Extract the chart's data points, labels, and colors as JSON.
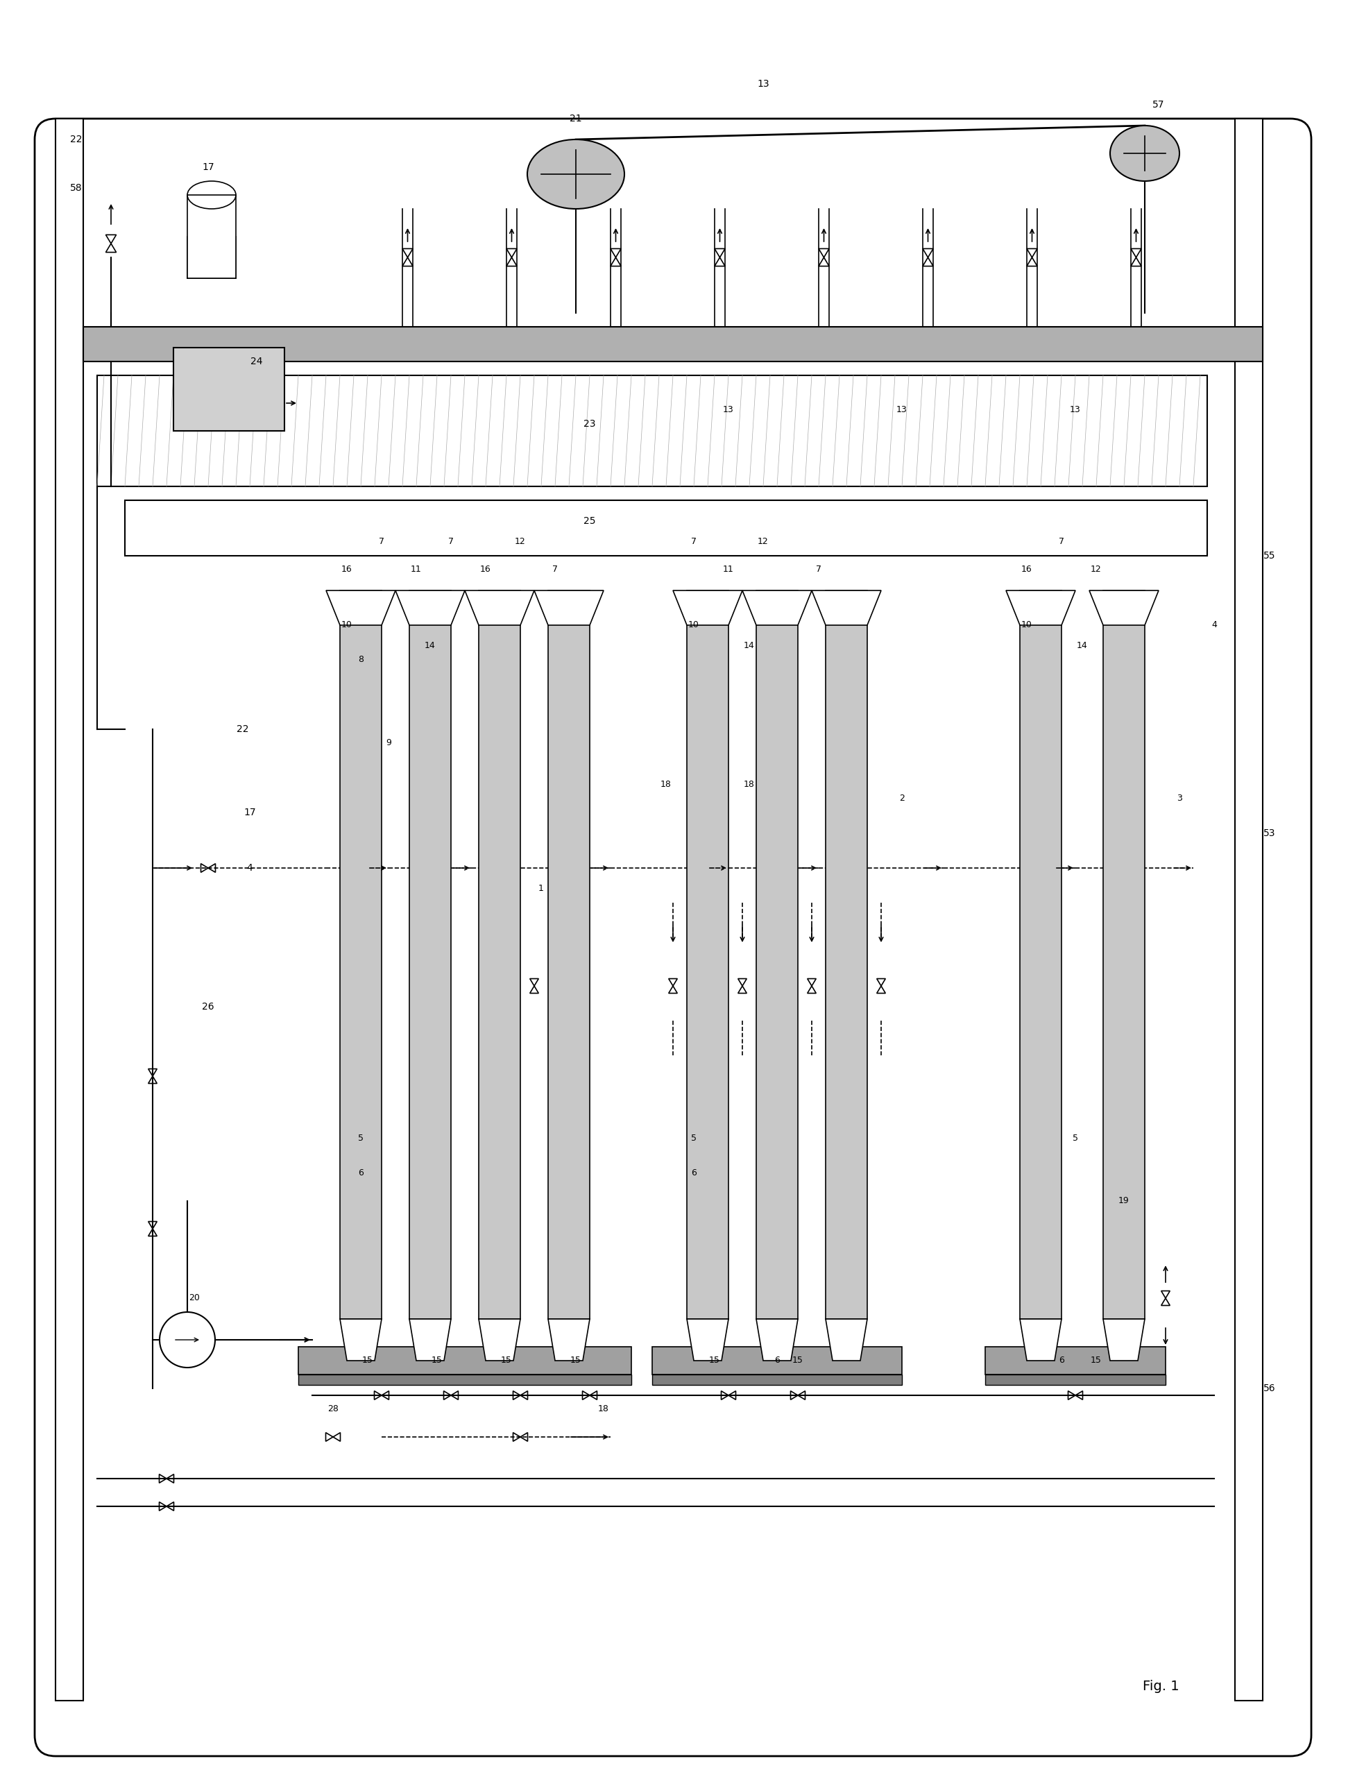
{
  "fig_width": 19.66,
  "fig_height": 25.51,
  "bg_color": "#ffffff",
  "line_color": "#000000",
  "gray_fill": "#c8c8c8",
  "light_gray": "#d8d8d8",
  "dark_gray": "#888888",
  "title": "Fig. 1"
}
